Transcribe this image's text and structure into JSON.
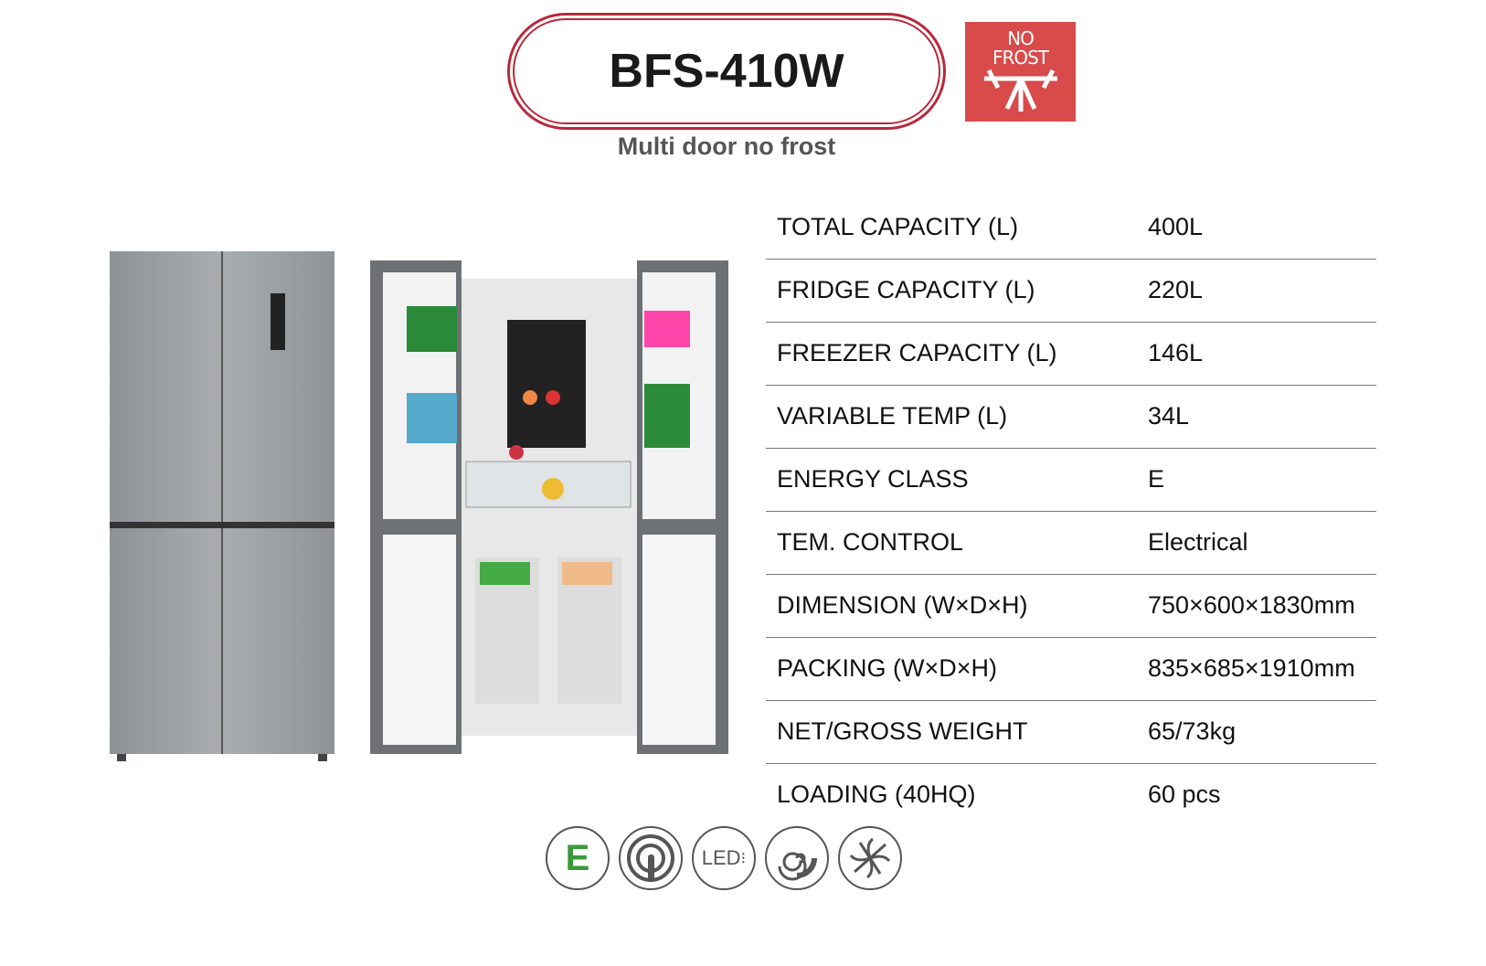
{
  "header": {
    "model": "BFS-410W",
    "subtitle": "Multi door no frost",
    "badge": {
      "line1": "NO",
      "line2": "FROST",
      "color": "#d94a4a"
    }
  },
  "specs": [
    {
      "label": "TOTAL CAPACITY (L)",
      "value": "400L"
    },
    {
      "label": "FRIDGE CAPACITY (L)",
      "value": "220L"
    },
    {
      "label": "FREEZER CAPACITY (L)",
      "value": "146L"
    },
    {
      "label": "VARIABLE TEMP (L)",
      "value": "34L"
    },
    {
      "label": "ENERGY CLASS",
      "value": "E"
    },
    {
      "label": "TEM. CONTROL",
      "value": "Electrical"
    },
    {
      "label": "DIMENSION (W×D×H)",
      "value": "750×600×1830mm"
    },
    {
      "label": "PACKING (W×D×H)",
      "value": "835×685×1910mm"
    },
    {
      "label": "NET/GROSS WEIGHT",
      "value": "65/73kg"
    },
    {
      "label": "LOADING (40HQ)",
      "value": "60 pcs"
    }
  ],
  "feature_icons": {
    "energy": "E",
    "led": "LED",
    "names": [
      "energy-class-icon",
      "touch-control-icon",
      "led-light-icon",
      "spiral-cooling-icon",
      "fan-icon"
    ],
    "energy_color": "#3a9a3a"
  }
}
